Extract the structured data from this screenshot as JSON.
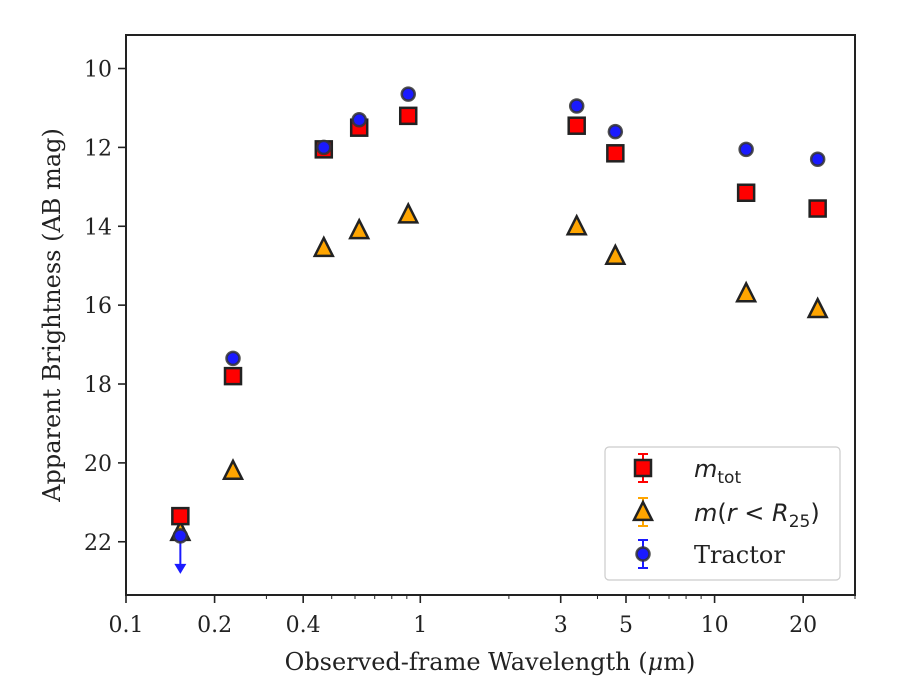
{
  "chart_data": {
    "type": "scatter",
    "title": "",
    "xlabel": "Observed-frame Wavelength (μm)",
    "ylabel": "Apparent Brightness (AB mag)",
    "xscale": "log",
    "xlim": [
      0.1,
      30
    ],
    "ylim": [
      23.35,
      9.15
    ],
    "y_inverted": true,
    "x_ticks": [
      0.1,
      0.2,
      0.4,
      1,
      3,
      5,
      10,
      20
    ],
    "x_tick_labels": [
      "0.1",
      "0.2",
      "0.4",
      "1",
      "3",
      "5",
      "10",
      "20"
    ],
    "y_ticks": [
      10,
      12,
      14,
      16,
      18,
      20,
      22
    ],
    "y_tick_labels": [
      "10",
      "12",
      "14",
      "16",
      "18",
      "20",
      "22"
    ],
    "grid": false,
    "legend_position": "lower-right",
    "series": [
      {
        "name": "m_tot",
        "legend_main": "m",
        "legend_sub": "tot",
        "marker": "square",
        "color": "#ff0000",
        "edge_color": "#222222",
        "points": [
          {
            "x": 0.153,
            "y": 21.35
          },
          {
            "x": 0.231,
            "y": 17.8
          },
          {
            "x": 0.47,
            "y": 12.05
          },
          {
            "x": 0.62,
            "y": 11.5
          },
          {
            "x": 0.91,
            "y": 11.2
          },
          {
            "x": 3.4,
            "y": 11.45
          },
          {
            "x": 4.6,
            "y": 12.15
          },
          {
            "x": 12.8,
            "y": 13.15
          },
          {
            "x": 22.4,
            "y": 13.55
          }
        ]
      },
      {
        "name": "m(r < R25)",
        "legend_main": "m(r < R",
        "legend_sub": "25",
        "legend_tail": ")",
        "marker": "triangle",
        "color": "#ffa500",
        "edge_color": "#222222",
        "points": [
          {
            "x": 0.153,
            "y": 21.75
          },
          {
            "x": 0.231,
            "y": 20.2
          },
          {
            "x": 0.47,
            "y": 14.55
          },
          {
            "x": 0.62,
            "y": 14.1
          },
          {
            "x": 0.91,
            "y": 13.7
          },
          {
            "x": 3.4,
            "y": 14.0
          },
          {
            "x": 4.6,
            "y": 14.75
          },
          {
            "x": 12.8,
            "y": 15.7
          },
          {
            "x": 22.4,
            "y": 16.1
          }
        ]
      },
      {
        "name": "Tractor",
        "marker": "circle",
        "color": "#1a1aff",
        "edge_color": "#333333",
        "points": [
          {
            "x": 0.153,
            "y": 21.85,
            "upper_limit": true
          },
          {
            "x": 0.231,
            "y": 17.35
          },
          {
            "x": 0.47,
            "y": 12.0
          },
          {
            "x": 0.62,
            "y": 11.3
          },
          {
            "x": 0.91,
            "y": 10.65
          },
          {
            "x": 3.4,
            "y": 10.95
          },
          {
            "x": 4.6,
            "y": 11.6
          },
          {
            "x": 12.8,
            "y": 12.05
          },
          {
            "x": 22.4,
            "y": 12.3
          }
        ]
      }
    ],
    "legend": [
      "m_tot",
      "m(r < R25)",
      "Tractor"
    ]
  }
}
